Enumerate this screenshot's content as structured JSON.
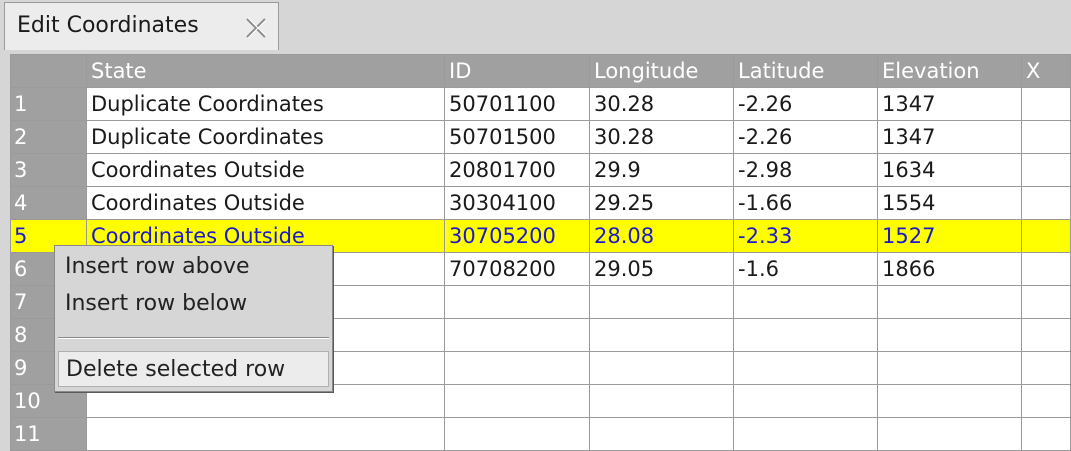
{
  "tab": {
    "title": "Edit Coordinates",
    "close_icon": "close-x-icon"
  },
  "columns": [
    "",
    "State",
    "ID",
    "Longitude",
    "Latitude",
    "Elevation",
    "X"
  ],
  "rows": [
    {
      "num": "1",
      "state": "Duplicate Coordinates",
      "id": "50701100",
      "longitude": "30.28",
      "latitude": "-2.26",
      "elevation": "1347"
    },
    {
      "num": "2",
      "state": "Duplicate Coordinates",
      "id": "50701500",
      "longitude": "30.28",
      "latitude": "-2.26",
      "elevation": "1347"
    },
    {
      "num": "3",
      "state": "Coordinates Outside",
      "id": "20801700",
      "longitude": "29.9",
      "latitude": "-2.98",
      "elevation": "1634"
    },
    {
      "num": "4",
      "state": "Coordinates Outside",
      "id": "30304100",
      "longitude": "29.25",
      "latitude": "-1.66",
      "elevation": "1554"
    },
    {
      "num": "5",
      "state": "Coordinates Outside",
      "id": "30705200",
      "longitude": "28.08",
      "latitude": "-2.33",
      "elevation": "1527"
    },
    {
      "num": "6",
      "state": "",
      "id": "70708200",
      "longitude": "29.05",
      "latitude": "-1.6",
      "elevation": "1866"
    },
    {
      "num": "7",
      "state": "",
      "id": "",
      "longitude": "",
      "latitude": "",
      "elevation": ""
    },
    {
      "num": "8",
      "state": "",
      "id": "",
      "longitude": "",
      "latitude": "",
      "elevation": ""
    },
    {
      "num": "9",
      "state": "",
      "id": "",
      "longitude": "",
      "latitude": "",
      "elevation": ""
    },
    {
      "num": "10",
      "state": "",
      "id": "",
      "longitude": "",
      "latitude": "",
      "elevation": ""
    },
    {
      "num": "11",
      "state": "",
      "id": "",
      "longitude": "",
      "latitude": "",
      "elevation": ""
    }
  ],
  "selected_row": "5",
  "colors": {
    "selection": "#ffff00",
    "selected_text": "#1a1acc",
    "header": "#a0a0a0"
  },
  "context_menu": {
    "items": [
      "Insert row above",
      "Insert row below",
      "Delete selected row"
    ]
  }
}
